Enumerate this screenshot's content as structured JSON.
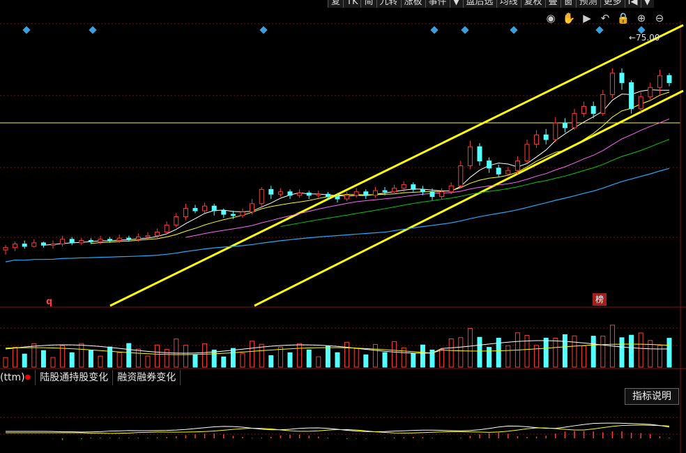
{
  "toolbar": {
    "items": [
      "复",
      "TK",
      "简",
      "九转",
      "涨板",
      "事件",
      "▼",
      "盘后选",
      "均线",
      "复权",
      "叠",
      "窗",
      "预测",
      "更多",
      "I◀",
      "▼"
    ]
  },
  "tool_icons": [
    "eye-icon",
    "hand-icon",
    "play-icon",
    "undo-icon",
    "lock-icon",
    "zoom-in-icon",
    "zoom-out-icon"
  ],
  "price_marker": "←75.00",
  "labels": {
    "q": "q",
    "bang": "榜"
  },
  "tabs": {
    "prefix": "(ttm)",
    "items": [
      "陆股通持股变化",
      "融资融券变化"
    ]
  },
  "indicator_button": "指标说明",
  "colors": {
    "up": "#ff3b3b",
    "down": "#54ffff",
    "ma5": "#ffffff",
    "ma10": "#ffff00",
    "ma20": "#ff66ff",
    "ma30": "#00cc00",
    "ma60": "#22aaff",
    "trend": "#ffff00"
  },
  "chart_data": {
    "type": "candlestick",
    "title": "",
    "price_marker": 75.0,
    "candles": [
      [
        59.7,
        59.9,
        59.3,
        60.1
      ],
      [
        59.9,
        60.2,
        59.6,
        60.4
      ],
      [
        60.2,
        60.0,
        59.8,
        60.5
      ],
      [
        60.0,
        60.3,
        59.9,
        60.6
      ],
      [
        60.3,
        60.1,
        59.9,
        60.4
      ],
      [
        60.1,
        60.2,
        59.8,
        60.5
      ],
      [
        60.2,
        60.6,
        60.0,
        60.9
      ],
      [
        60.6,
        60.3,
        60.1,
        60.8
      ],
      [
        60.3,
        60.5,
        60.1,
        60.7
      ],
      [
        60.5,
        60.4,
        60.2,
        60.7
      ],
      [
        60.4,
        60.6,
        60.2,
        60.9
      ],
      [
        60.6,
        60.5,
        60.3,
        60.8
      ],
      [
        60.5,
        60.7,
        60.3,
        61.0
      ],
      [
        60.7,
        60.6,
        60.4,
        60.9
      ],
      [
        60.6,
        60.8,
        60.4,
        61.1
      ],
      [
        60.8,
        60.9,
        60.6,
        61.2
      ],
      [
        60.9,
        61.2,
        60.7,
        61.5
      ],
      [
        61.2,
        61.8,
        61.0,
        62.1
      ],
      [
        61.8,
        62.5,
        61.6,
        62.8
      ],
      [
        62.5,
        63.2,
        62.2,
        63.6
      ],
      [
        63.2,
        63.0,
        62.8,
        63.5
      ],
      [
        63.0,
        63.4,
        62.8,
        63.7
      ],
      [
        63.4,
        63.0,
        62.6,
        63.6
      ],
      [
        63.0,
        62.7,
        62.4,
        63.2
      ],
      [
        62.7,
        62.6,
        62.3,
        63.0
      ],
      [
        62.6,
        62.9,
        62.4,
        63.2
      ],
      [
        62.9,
        63.6,
        62.7,
        64.0
      ],
      [
        63.6,
        64.8,
        63.4,
        65.0
      ],
      [
        64.8,
        64.4,
        64.0,
        65.1
      ],
      [
        64.4,
        64.6,
        64.2,
        64.9
      ],
      [
        64.6,
        64.3,
        64.0,
        64.8
      ],
      [
        64.3,
        64.5,
        64.1,
        64.8
      ],
      [
        64.5,
        64.3,
        64.0,
        64.7
      ],
      [
        64.3,
        64.4,
        64.1,
        64.7
      ],
      [
        64.4,
        64.2,
        63.9,
        64.6
      ],
      [
        64.2,
        64.0,
        63.7,
        64.5
      ],
      [
        64.0,
        64.3,
        63.8,
        64.6
      ],
      [
        64.3,
        64.6,
        64.1,
        64.9
      ],
      [
        64.6,
        64.3,
        64.0,
        64.8
      ],
      [
        64.3,
        64.7,
        64.1,
        65.0
      ],
      [
        64.7,
        64.6,
        64.3,
        65.0
      ],
      [
        64.6,
        64.9,
        64.4,
        65.2
      ],
      [
        64.9,
        65.2,
        64.6,
        65.5
      ],
      [
        65.2,
        64.8,
        64.6,
        65.4
      ],
      [
        64.8,
        64.6,
        64.3,
        65.1
      ],
      [
        64.6,
        64.2,
        63.9,
        64.9
      ],
      [
        64.2,
        64.6,
        64.0,
        64.9
      ],
      [
        64.6,
        65.1,
        64.4,
        65.4
      ],
      [
        65.1,
        66.8,
        64.9,
        67.2
      ],
      [
        66.8,
        68.4,
        66.5,
        68.9
      ],
      [
        68.4,
        67.2,
        66.8,
        68.7
      ],
      [
        67.2,
        66.6,
        66.2,
        67.5
      ],
      [
        66.6,
        66.1,
        65.8,
        66.9
      ],
      [
        66.1,
        66.4,
        65.9,
        66.7
      ],
      [
        66.4,
        67.2,
        66.1,
        67.6
      ],
      [
        67.2,
        68.6,
        67.0,
        69.0
      ],
      [
        68.6,
        69.4,
        68.3,
        69.8
      ],
      [
        69.4,
        69.0,
        68.6,
        69.9
      ],
      [
        69.0,
        70.4,
        68.8,
        70.9
      ],
      [
        70.4,
        70.0,
        69.6,
        70.8
      ],
      [
        70.0,
        71.2,
        69.8,
        71.6
      ],
      [
        71.2,
        71.8,
        70.9,
        72.2
      ],
      [
        71.8,
        71.2,
        70.8,
        72.2
      ],
      [
        71.2,
        72.8,
        71.0,
        73.2
      ],
      [
        72.8,
        74.6,
        72.5,
        75.0
      ],
      [
        74.6,
        73.8,
        73.2,
        75.0
      ],
      [
        73.8,
        71.6,
        71.2,
        74.0
      ],
      [
        71.6,
        72.6,
        71.3,
        73.0
      ],
      [
        72.6,
        73.4,
        72.3,
        73.8
      ],
      [
        73.4,
        74.4,
        72.8,
        74.9
      ],
      [
        74.4,
        73.8,
        73.5,
        74.6
      ]
    ],
    "volume_note": "volume bars shown below candlestick panel",
    "indicator": "MACD-like oscillator in lower panel"
  }
}
